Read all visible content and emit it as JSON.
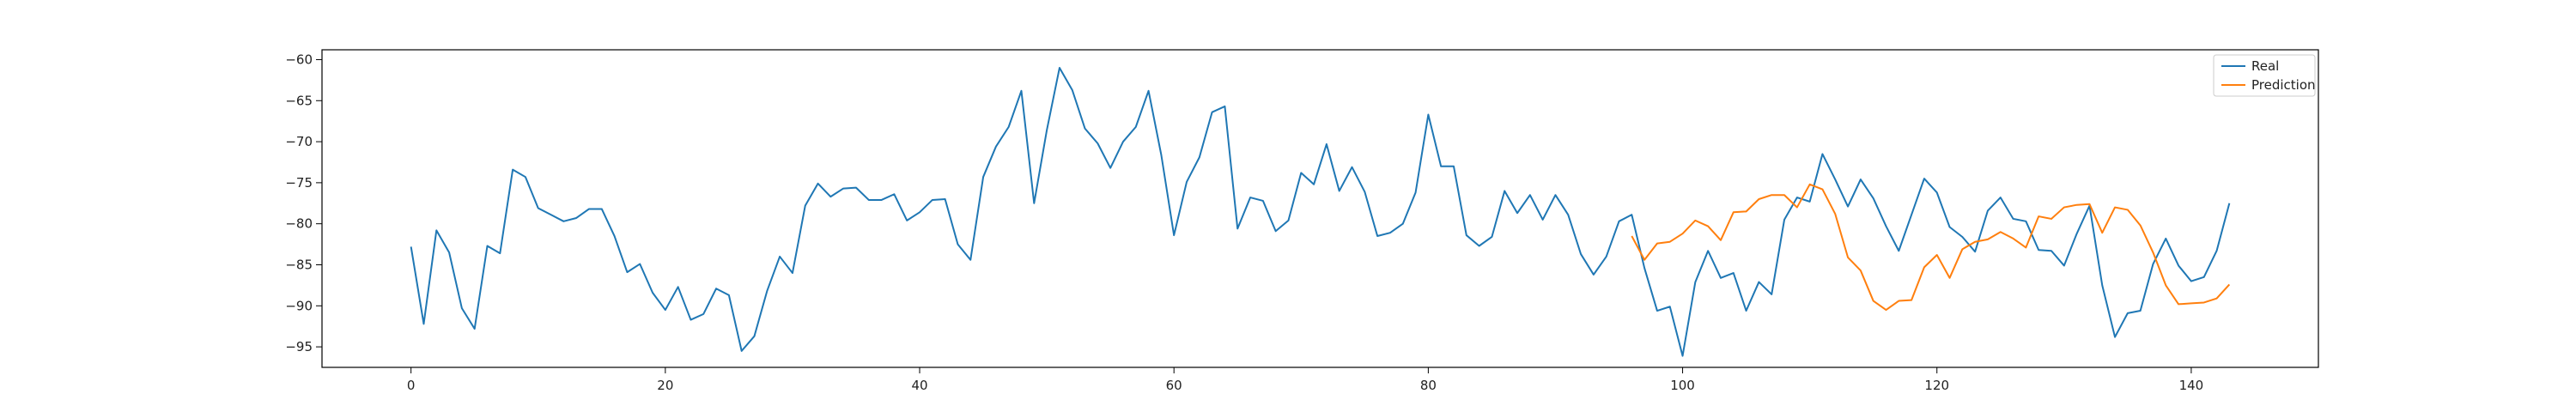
{
  "chart_data": {
    "type": "line",
    "title": "",
    "xlabel": "",
    "ylabel": "",
    "xlim": [
      -7,
      150
    ],
    "ylim": [
      -97.5,
      -58.8
    ],
    "x_ticks": [
      0,
      20,
      40,
      60,
      80,
      100,
      120,
      140
    ],
    "y_ticks": [
      -60,
      -65,
      -70,
      -75,
      -80,
      -85,
      -90,
      -95
    ],
    "grid": false,
    "legend_position": "top-right",
    "series": [
      {
        "name": "Real",
        "color": "#1f77b4",
        "x_start": 0,
        "values": [
          -82.8,
          -92.2,
          -80.8,
          -83.5,
          -90.3,
          -92.8,
          -82.7,
          -83.6,
          -73.4,
          -74.3,
          -78.1,
          -78.9,
          -79.7,
          -79.3,
          -78.2,
          -78.2,
          -81.5,
          -85.9,
          -84.9,
          -88.4,
          -90.5,
          -87.7,
          -91.7,
          -91.0,
          -87.9,
          -88.7,
          -95.5,
          -93.7,
          -88.2,
          -84.0,
          -86.0,
          -77.8,
          -75.1,
          -76.7,
          -75.7,
          -75.6,
          -77.1,
          -77.1,
          -76.4,
          -79.6,
          -78.6,
          -77.1,
          -77.0,
          -82.5,
          -84.4,
          -74.3,
          -70.6,
          -68.2,
          -63.8,
          -77.5,
          -68.6,
          -61.0,
          -63.7,
          -68.4,
          -70.2,
          -73.2,
          -70.0,
          -68.2,
          -63.8,
          -71.6,
          -81.4,
          -74.9,
          -71.9,
          -66.4,
          -65.7,
          -80.6,
          -76.8,
          -77.2,
          -80.9,
          -79.6,
          -73.8,
          -75.2,
          -70.3,
          -76.0,
          -73.1,
          -76.1,
          -81.5,
          -81.1,
          -80.0,
          -76.2,
          -66.7,
          -73.0,
          -73.0,
          -81.4,
          -82.7,
          -81.6,
          -76.0,
          -78.7,
          -76.5,
          -79.5,
          -76.5,
          -78.9,
          -83.7,
          -86.2,
          -84.0,
          -79.7,
          -78.9,
          -85.4,
          -90.6,
          -90.1,
          -96.1,
          -87.1,
          -83.3,
          -86.6,
          -86.0,
          -90.6,
          -87.1,
          -88.6,
          -79.5,
          -76.8,
          -77.3,
          -71.5,
          -74.6,
          -77.9,
          -74.6,
          -76.9,
          -80.3,
          -83.3,
          -78.9,
          -74.5,
          -76.2,
          -80.4,
          -81.6,
          -83.4,
          -78.4,
          -76.8,
          -79.4,
          -79.7,
          -83.2,
          -83.3,
          -85.1,
          -81.2,
          -77.8,
          -87.5,
          -93.8,
          -90.9,
          -90.6,
          -84.9,
          -81.8,
          -85.1,
          -87.0,
          -86.5,
          -83.3,
          -77.5
        ]
      },
      {
        "name": "Prediction",
        "color": "#ff7f0e",
        "x_start": 96,
        "values": [
          -81.5,
          -84.4,
          -82.4,
          -82.2,
          -81.2,
          -79.6,
          -80.3,
          -82.0,
          -78.6,
          -78.5,
          -77.0,
          -76.5,
          -76.5,
          -78.0,
          -75.2,
          -75.8,
          -78.8,
          -84.1,
          -85.7,
          -89.4,
          -90.5,
          -89.4,
          -89.3,
          -85.3,
          -83.8,
          -86.6,
          -83.1,
          -82.2,
          -81.9,
          -81.0,
          -81.8,
          -82.9,
          -79.1,
          -79.4,
          -78.0,
          -77.7,
          -77.6,
          -81.1,
          -78.0,
          -78.3,
          -80.2,
          -83.5,
          -87.5,
          -89.8,
          -89.7,
          -89.6,
          -89.1,
          -87.4
        ]
      }
    ]
  }
}
